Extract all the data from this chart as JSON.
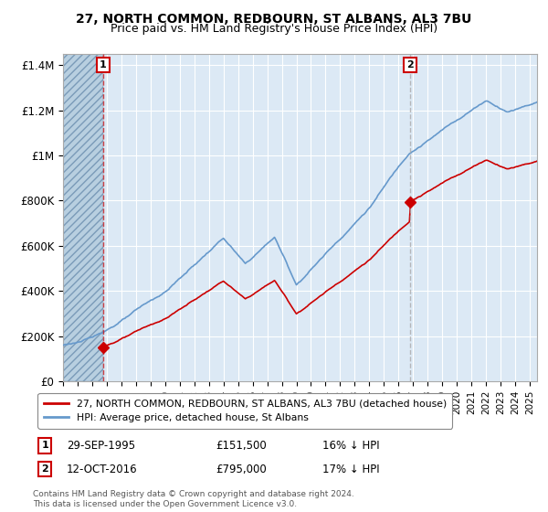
{
  "title": "27, NORTH COMMON, REDBOURN, ST ALBANS, AL3 7BU",
  "subtitle": "Price paid vs. HM Land Registry's House Price Index (HPI)",
  "legend_line1": "27, NORTH COMMON, REDBOURN, ST ALBANS, AL3 7BU (detached house)",
  "legend_line2": "HPI: Average price, detached house, St Albans",
  "point1_date": "29-SEP-1995",
  "point1_price": "£151,500",
  "point1_hpi": "16% ↓ HPI",
  "point1_year": 1995.75,
  "point1_value": 151500,
  "point2_date": "12-OCT-2016",
  "point2_price": "£795,000",
  "point2_hpi": "17% ↓ HPI",
  "point2_year": 2016.79,
  "point2_value": 795000,
  "footer": "Contains HM Land Registry data © Crown copyright and database right 2024.\nThis data is licensed under the Open Government Licence v3.0.",
  "ylim": [
    0,
    1450000
  ],
  "xlim_start": 1993.0,
  "xlim_end": 2025.5,
  "hatch_end": 1995.75,
  "bg_color": "#dce9f5",
  "hatch_color": "#b8cfe0",
  "red_color": "#cc0000",
  "blue_color": "#6699cc",
  "vline1_color": "#cc0000",
  "vline2_color": "#aaaaaa",
  "grid_color": "#ffffff",
  "title_fontsize": 10,
  "subtitle_fontsize": 9
}
